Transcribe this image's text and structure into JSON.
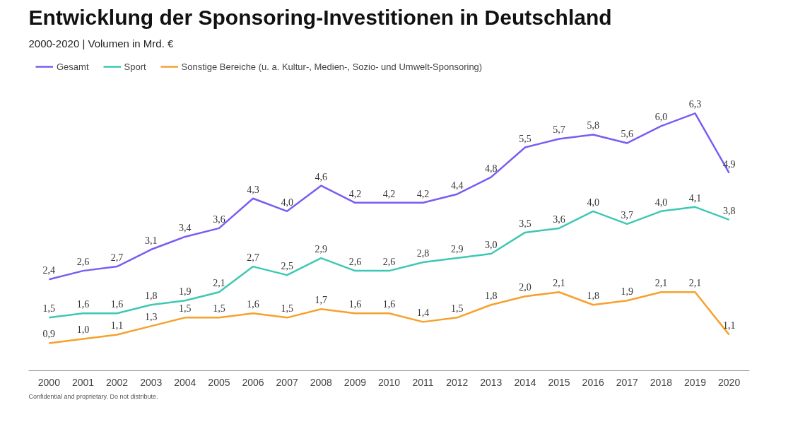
{
  "chart_data": {
    "type": "line",
    "title": "Entwicklung der Sponsoring-Investitionen in Deutschland",
    "subtitle": "2000-2020 | Volumen in Mrd. €",
    "categories": [
      "2000",
      "2001",
      "2002",
      "2003",
      "2004",
      "2005",
      "2006",
      "2007",
      "2008",
      "2009",
      "2010",
      "2011",
      "2012",
      "2013",
      "2014",
      "2015",
      "2016",
      "2017",
      "2018",
      "2019",
      "2020"
    ],
    "series": [
      {
        "name": "Gesamt",
        "color": "#7b5cf2",
        "values": [
          2.4,
          2.6,
          2.7,
          3.1,
          3.4,
          3.6,
          4.3,
          4.0,
          4.6,
          4.2,
          4.2,
          4.2,
          4.4,
          4.8,
          5.5,
          5.7,
          5.8,
          5.6,
          6.0,
          6.3,
          4.9
        ],
        "value_labels": [
          "2,4",
          "2,6",
          "2,7",
          "3,1",
          "3,4",
          "3,6",
          "4,3",
          "4,0",
          "4,6",
          "4,2",
          "4,2",
          "4,2",
          "4,4",
          "4,8",
          "5,5",
          "5,7",
          "5,8",
          "5,6",
          "6,0",
          "6,3",
          "4,9"
        ]
      },
      {
        "name": "Sport",
        "color": "#3ec8b4",
        "values": [
          1.5,
          1.6,
          1.6,
          1.8,
          1.9,
          2.1,
          2.7,
          2.5,
          2.9,
          2.6,
          2.6,
          2.8,
          2.9,
          3.0,
          3.5,
          3.6,
          4.0,
          3.7,
          4.0,
          4.1,
          3.8
        ],
        "value_labels": [
          "1,5",
          "1,6",
          "1,6",
          "1,8",
          "1,9",
          "2,1",
          "2,7",
          "2,5",
          "2,9",
          "2,6",
          "2,6",
          "2,8",
          "2,9",
          "3,0",
          "3,5",
          "3,6",
          "4,0",
          "3,7",
          "4,0",
          "4,1",
          "3,8"
        ]
      },
      {
        "name": "Sonstige Bereiche (u. a. Kultur-, Medien-, Sozio- und Umwelt-Sponsoring)",
        "color": "#f7a12c",
        "values": [
          0.9,
          1.0,
          1.1,
          1.3,
          1.5,
          1.5,
          1.6,
          1.5,
          1.7,
          1.6,
          1.6,
          1.4,
          1.5,
          1.8,
          2.0,
          2.1,
          1.8,
          1.9,
          2.1,
          2.1,
          1.1
        ],
        "value_labels": [
          "0,9",
          "1,0",
          "1,1",
          "1,3",
          "1,5",
          "1,5",
          "1,6",
          "1,5",
          "1,7",
          "1,6",
          "1,6",
          "1,4",
          "1,5",
          "1,8",
          "2,0",
          "2,1",
          "1,8",
          "1,9",
          "2,1",
          "2,1",
          "1,1"
        ]
      }
    ],
    "annotations": [
      "Confidential and proprietary. Do not distribute."
    ],
    "legend": "top left",
    "grid": false,
    "tick_labels": "x",
    "marker": "none",
    "line_style": "solid"
  }
}
